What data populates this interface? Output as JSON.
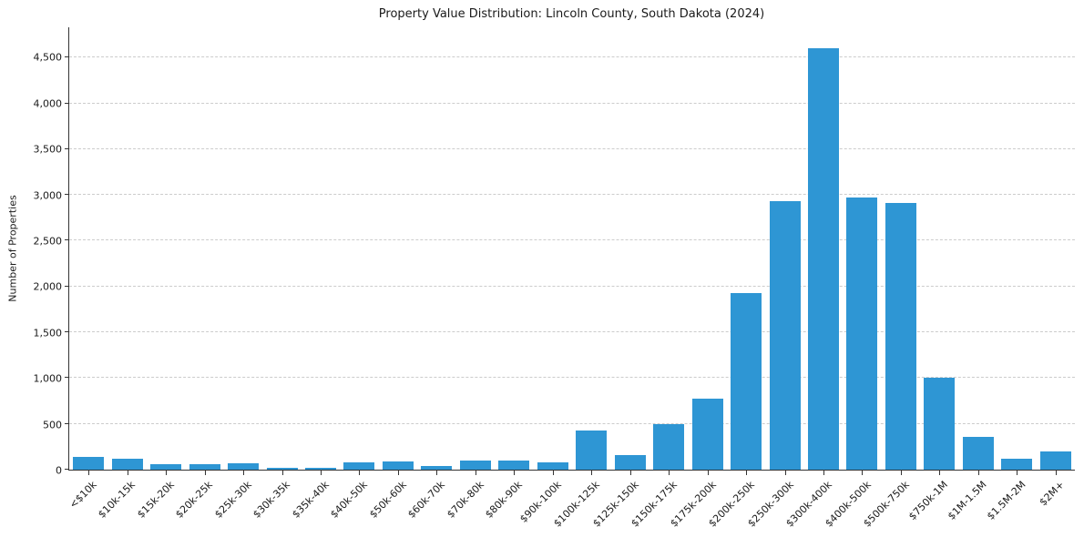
{
  "chart_data": {
    "type": "bar",
    "title": "Property Value Distribution: Lincoln County, South Dakota (2024)",
    "ylabel": "Number of Properties",
    "categories": [
      "<$10k",
      "$10k-15k",
      "$15k-20k",
      "$20k-25k",
      "$25k-30k",
      "$30k-35k",
      "$35k-40k",
      "$40k-50k",
      "$50k-60k",
      "$60k-70k",
      "$70k-80k",
      "$80k-90k",
      "$90k-100k",
      "$100k-125k",
      "$125k-150k",
      "$150k-175k",
      "$175k-200k",
      "$200k-250k",
      "$250k-300k",
      "$300k-400k",
      "$400k-500k",
      "$500k-750k",
      "$750k-1M",
      "$1M-1.5M",
      "$1.5M-2M",
      "$2M+"
    ],
    "values": [
      140,
      120,
      60,
      60,
      70,
      20,
      25,
      80,
      90,
      35,
      100,
      100,
      80,
      430,
      160,
      495,
      780,
      1925,
      2930,
      4600,
      2975,
      2910,
      1000,
      355,
      120,
      200
    ],
    "ylim": [
      0,
      4830
    ],
    "yticks": [
      0,
      500,
      1000,
      1500,
      2000,
      2500,
      3000,
      3500,
      4000,
      4500
    ],
    "ytick_labels": [
      "0",
      "500",
      "1,000",
      "1,500",
      "2,000",
      "2,500",
      "3,000",
      "3,500",
      "4,000",
      "4,500"
    ],
    "bar_color": "#2e96d4",
    "grid": {
      "axis": "y",
      "style": "dashed",
      "color": "#cccccc"
    },
    "legend": null,
    "bar_width_fraction": 0.8
  }
}
